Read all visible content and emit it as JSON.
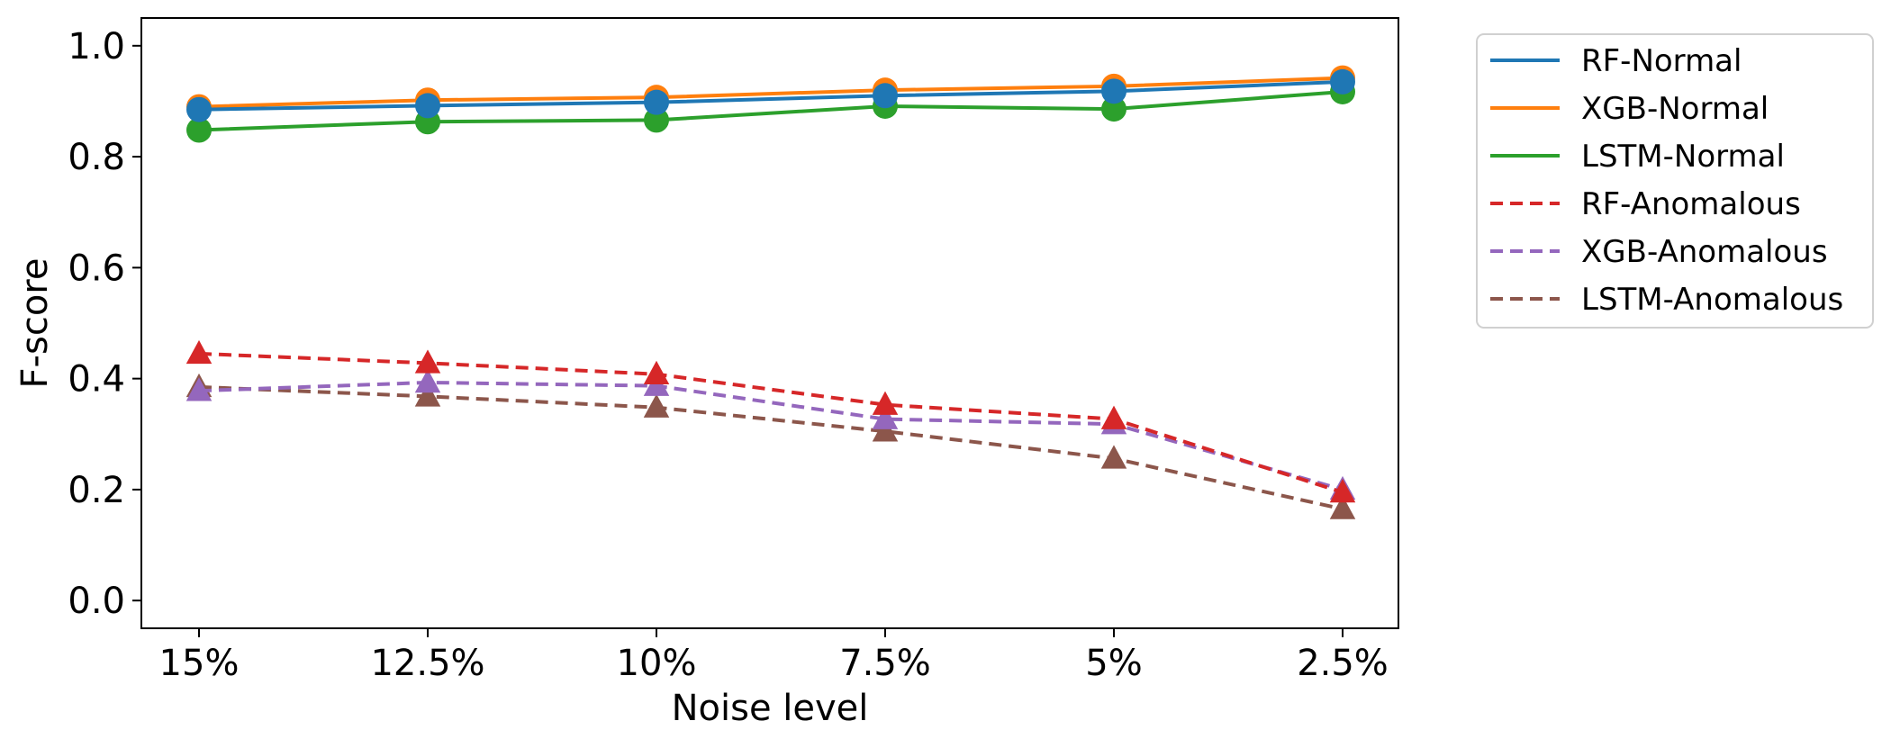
{
  "chart_data": {
    "type": "line",
    "xlabel": "Noise level",
    "ylabel": "F-score",
    "categories": [
      "15%",
      "12.5%",
      "10%",
      "7.5%",
      "5%",
      "2.5%"
    ],
    "ylim": [
      -0.05,
      1.05
    ],
    "yticks": [
      "0.0",
      "0.2",
      "0.4",
      "0.6",
      "0.8",
      "1.0"
    ],
    "ytick_values": [
      0.0,
      0.2,
      0.4,
      0.6,
      0.8,
      1.0
    ],
    "grid": false,
    "legend_position": "outside-upper-right",
    "series": [
      {
        "name": "RF-Normal",
        "color": "#1f77b4",
        "dash": "solid",
        "marker": "circle",
        "values": [
          0.885,
          0.892,
          0.898,
          0.91,
          0.918,
          0.935
        ]
      },
      {
        "name": "XGB-Normal",
        "color": "#ff7f0e",
        "dash": "solid",
        "marker": "circle",
        "values": [
          0.89,
          0.902,
          0.907,
          0.92,
          0.927,
          0.942
        ]
      },
      {
        "name": "LSTM-Normal",
        "color": "#2ca02c",
        "dash": "solid",
        "marker": "circle",
        "values": [
          0.848,
          0.863,
          0.866,
          0.891,
          0.886,
          0.917
        ]
      },
      {
        "name": "RF-Anomalous",
        "color": "#d62728",
        "dash": "dashed",
        "marker": "triangle",
        "values": [
          0.445,
          0.428,
          0.408,
          0.353,
          0.327,
          0.195
        ]
      },
      {
        "name": "XGB-Anomalous",
        "color": "#9467bd",
        "dash": "dashed",
        "marker": "triangle",
        "values": [
          0.378,
          0.393,
          0.387,
          0.327,
          0.318,
          0.2
        ]
      },
      {
        "name": "LSTM-Anomalous",
        "color": "#8c564b",
        "dash": "dashed",
        "marker": "triangle",
        "values": [
          0.385,
          0.368,
          0.348,
          0.305,
          0.256,
          0.165
        ]
      }
    ]
  }
}
